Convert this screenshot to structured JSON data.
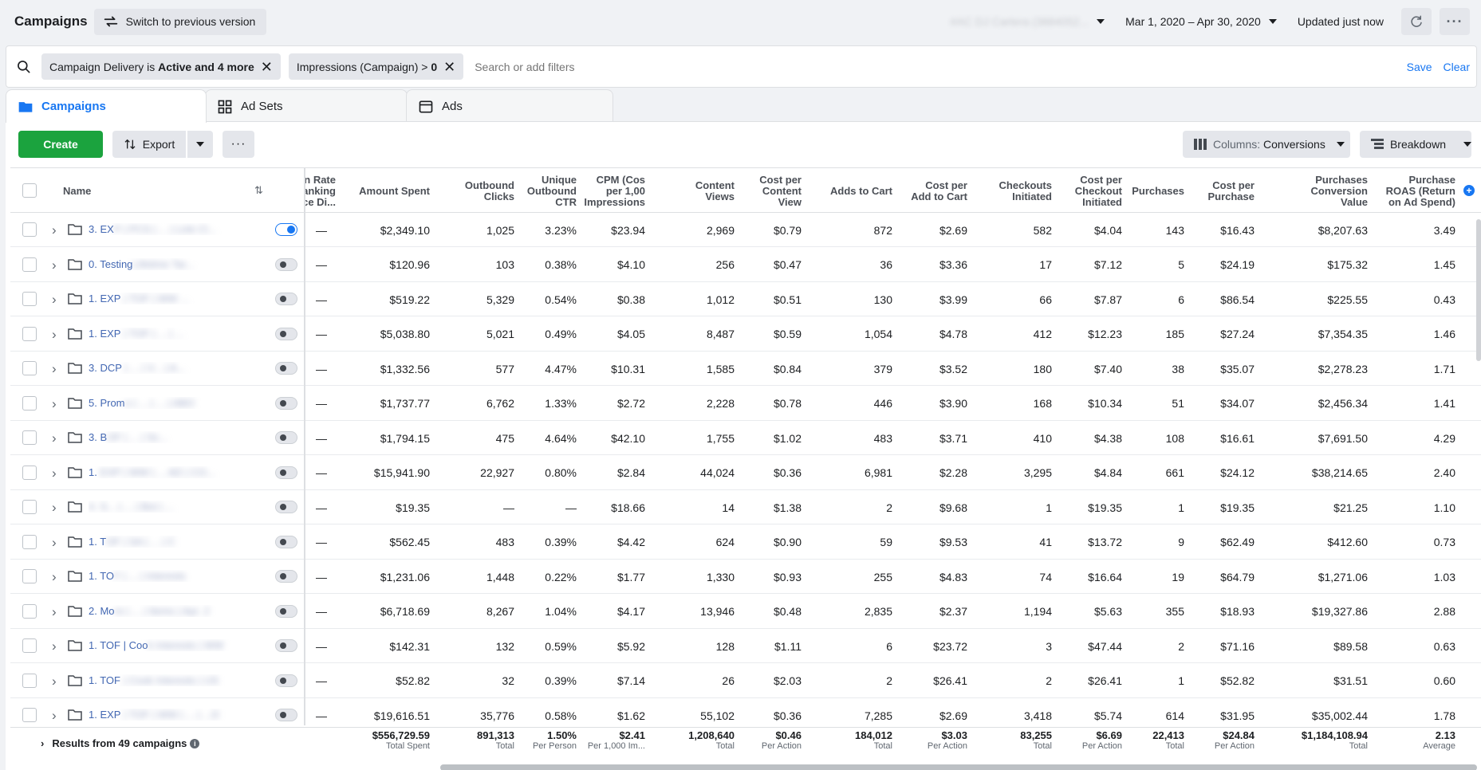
{
  "header": {
    "title": "Campaigns",
    "switch_label": "Switch to previous version",
    "account_name": "#AC DJ Cartera (3884052...",
    "date_range": "Mar 1, 2020 – Apr 30, 2020",
    "updated": "Updated just now"
  },
  "filters": {
    "chips": [
      {
        "prefix": "Campaign Delivery is ",
        "bold": "Active and 4 more"
      },
      {
        "prefix": "Impressions (Campaign) > ",
        "bold": "0"
      }
    ],
    "placeholder": "Search or add filters",
    "save_label": "Save",
    "clear_label": "Clear"
  },
  "tabs": [
    {
      "label": "Campaigns"
    },
    {
      "label": "Ad Sets"
    },
    {
      "label": "Ads"
    }
  ],
  "toolbar": {
    "create_label": "Create",
    "export_label": "Export",
    "more_label": "···",
    "columns_prefix": "Columns: ",
    "columns_value": "Conversions",
    "breakdown_label": "Breakdown"
  },
  "table": {
    "name_header": "Name",
    "headers": [
      "n Rate\nanking\nce Di...",
      "Amount Spent",
      "Outbound\nClicks",
      "Unique\nOutbound\nCTR",
      "CPM (Cos\nper 1,00\nImpressions",
      "Content\nViews",
      "Cost per\nContent\nView",
      "Adds to Cart",
      "Cost per\nAdd to Cart",
      "Checkouts\nInitiated",
      "Cost per\nCheckout\nInitiated",
      "Purchases",
      "Cost per\nPurchase",
      "Purchases\nConversion\nValue",
      "Purchase\nROAS (Return\non Ad Spend)"
    ],
    "rows": [
      {
        "name_visible": "3. EX",
        "name_hidden": "P | PCS | ... | Link Cl...",
        "on": true,
        "cells": [
          "—",
          "$2,349.10",
          "1,025",
          "3.23%",
          "$23.94",
          "2,969",
          "$0.79",
          "872",
          "$2.69",
          "582",
          "$4.04",
          "143",
          "$16.43",
          "$8,207.63",
          "3.49"
        ]
      },
      {
        "name_visible": "0. Testing",
        "name_hidden": "Lifetime Tar...",
        "on": false,
        "cells": [
          "—",
          "$120.96",
          "103",
          "0.38%",
          "$4.10",
          "256",
          "$0.47",
          "36",
          "$3.36",
          "17",
          "$7.12",
          "5",
          "$24.19",
          "$175.32",
          "1.45"
        ]
      },
      {
        "name_visible": "1. EXP",
        "name_hidden": " | TOF | WW ...",
        "on": false,
        "cells": [
          "—",
          "$519.22",
          "5,329",
          "0.54%",
          "$0.38",
          "1,012",
          "$0.51",
          "130",
          "$3.99",
          "66",
          "$7.87",
          "6",
          "$86.54",
          "$225.55",
          "0.43"
        ]
      },
      {
        "name_visible": "1. EXP",
        "name_hidden": " | TOF | ... | ...",
        "on": false,
        "cells": [
          "—",
          "$5,038.80",
          "5,021",
          "0.49%",
          "$4.05",
          "8,487",
          "$0.59",
          "1,054",
          "$4.78",
          "412",
          "$12.23",
          "185",
          "$27.24",
          "$7,354.35",
          "1.46"
        ]
      },
      {
        "name_visible": "3. DCP",
        "name_hidden": " | ... | V... | A...",
        "on": false,
        "cells": [
          "—",
          "$1,332.56",
          "577",
          "4.47%",
          "$10.31",
          "1,585",
          "$0.84",
          "379",
          "$3.52",
          "180",
          "$7.40",
          "38",
          "$35.07",
          "$2,278.23",
          "1.71"
        ]
      },
      {
        "name_visible": "5. Prom",
        "name_hidden": "o | ... | ... | ABO",
        "on": false,
        "cells": [
          "—",
          "$1,737.77",
          "6,762",
          "1.33%",
          "$2.72",
          "2,228",
          "$0.78",
          "446",
          "$3.90",
          "168",
          "$10.34",
          "51",
          "$34.07",
          "$2,456.34",
          "1.41"
        ]
      },
      {
        "name_visible": "3. B",
        "name_hidden": "OF | ... | Sc...",
        "on": false,
        "cells": [
          "—",
          "$1,794.15",
          "475",
          "4.64%",
          "$42.10",
          "1,755",
          "$1.02",
          "483",
          "$3.71",
          "410",
          "$4.38",
          "108",
          "$16.61",
          "$7,691.50",
          "4.29"
        ]
      },
      {
        "name_visible": "1. ",
        "name_hidden": "EXP | WW | ... AD | CO...",
        "on": false,
        "cells": [
          "—",
          "$15,941.90",
          "22,927",
          "0.80%",
          "$2.84",
          "44,024",
          "$0.36",
          "6,981",
          "$2.28",
          "3,295",
          "$4.84",
          "661",
          "$24.12",
          "$38,214.65",
          "2.40"
        ]
      },
      {
        "name_visible": "",
        "name_hidden": "4. S... | ... | Bot | ...",
        "on": false,
        "cells": [
          "—",
          "$19.35",
          "—",
          "—",
          "$18.66",
          "14",
          "$1.38",
          "2",
          "$9.68",
          "1",
          "$19.35",
          "1",
          "$19.35",
          "$21.25",
          "1.10"
        ]
      },
      {
        "name_visible": "1. T",
        "name_hidden": "OF | SA | ... | C",
        "on": false,
        "cells": [
          "—",
          "$562.45",
          "483",
          "0.39%",
          "$4.42",
          "624",
          "$0.90",
          "59",
          "$9.53",
          "41",
          "$13.72",
          "9",
          "$62.49",
          "$412.60",
          "0.73"
        ]
      },
      {
        "name_visible": "1. TO",
        "name_hidden": "F | ... | Interests",
        "on": false,
        "cells": [
          "—",
          "$1,231.06",
          "1,448",
          "0.22%",
          "$1.77",
          "1,330",
          "$0.93",
          "255",
          "$4.83",
          "74",
          "$16.64",
          "19",
          "$64.79",
          "$1,271.06",
          "1.03"
        ]
      },
      {
        "name_visible": "2. Mo",
        "name_hidden": "re | ... | Items | Apr. 2",
        "on": false,
        "cells": [
          "—",
          "$6,718.69",
          "8,267",
          "1.04%",
          "$4.17",
          "13,946",
          "$0.48",
          "2,835",
          "$2.37",
          "1,194",
          "$5.63",
          "355",
          "$18.93",
          "$19,327.86",
          "2.88"
        ]
      },
      {
        "name_visible": "1. TOF | Coo",
        "name_hidden": "k Interests | WW",
        "on": false,
        "cells": [
          "—",
          "$142.31",
          "132",
          "0.59%",
          "$5.92",
          "128",
          "$1.11",
          "6",
          "$23.72",
          "3",
          "$47.44",
          "2",
          "$71.16",
          "$89.58",
          "0.63"
        ]
      },
      {
        "name_visible": "1. TOF",
        "name_hidden": " | Cook Interests | US",
        "on": false,
        "cells": [
          "—",
          "$52.82",
          "32",
          "0.39%",
          "$7.14",
          "26",
          "$2.03",
          "2",
          "$26.41",
          "2",
          "$26.41",
          "1",
          "$52.82",
          "$31.51",
          "0.60"
        ]
      },
      {
        "name_visible": "1. EXP",
        "name_hidden": " | TOF | WW | ... | ...D",
        "on": false,
        "cells": [
          "—",
          "$19,616.51",
          "35,776",
          "0.58%",
          "$1.62",
          "55,102",
          "$0.36",
          "7,285",
          "$2.69",
          "3,418",
          "$5.74",
          "614",
          "$31.95",
          "$35,002.44",
          "1.78"
        ]
      }
    ],
    "footer": {
      "label": "Results from 49 campaigns",
      "cells": [
        {
          "v": "",
          "s": ""
        },
        {
          "v": "$556,729.59",
          "s": "Total Spent"
        },
        {
          "v": "891,313",
          "s": "Total"
        },
        {
          "v": "1.50%",
          "s": "Per Person"
        },
        {
          "v": "$2.41",
          "s": "Per 1,000 Im..."
        },
        {
          "v": "1,208,640",
          "s": "Total"
        },
        {
          "v": "$0.46",
          "s": "Per Action"
        },
        {
          "v": "184,012",
          "s": "Total"
        },
        {
          "v": "$3.03",
          "s": "Per Action"
        },
        {
          "v": "83,255",
          "s": "Total"
        },
        {
          "v": "$6.69",
          "s": "Per Action"
        },
        {
          "v": "22,413",
          "s": "Total"
        },
        {
          "v": "$24.84",
          "s": "Per Action"
        },
        {
          "v": "$1,184,108.94",
          "s": "Total"
        },
        {
          "v": "2.13",
          "s": "Average"
        }
      ]
    }
  },
  "colors": {
    "accent": "#1877f2",
    "create": "#1ba33e",
    "link": "#4267b2"
  }
}
